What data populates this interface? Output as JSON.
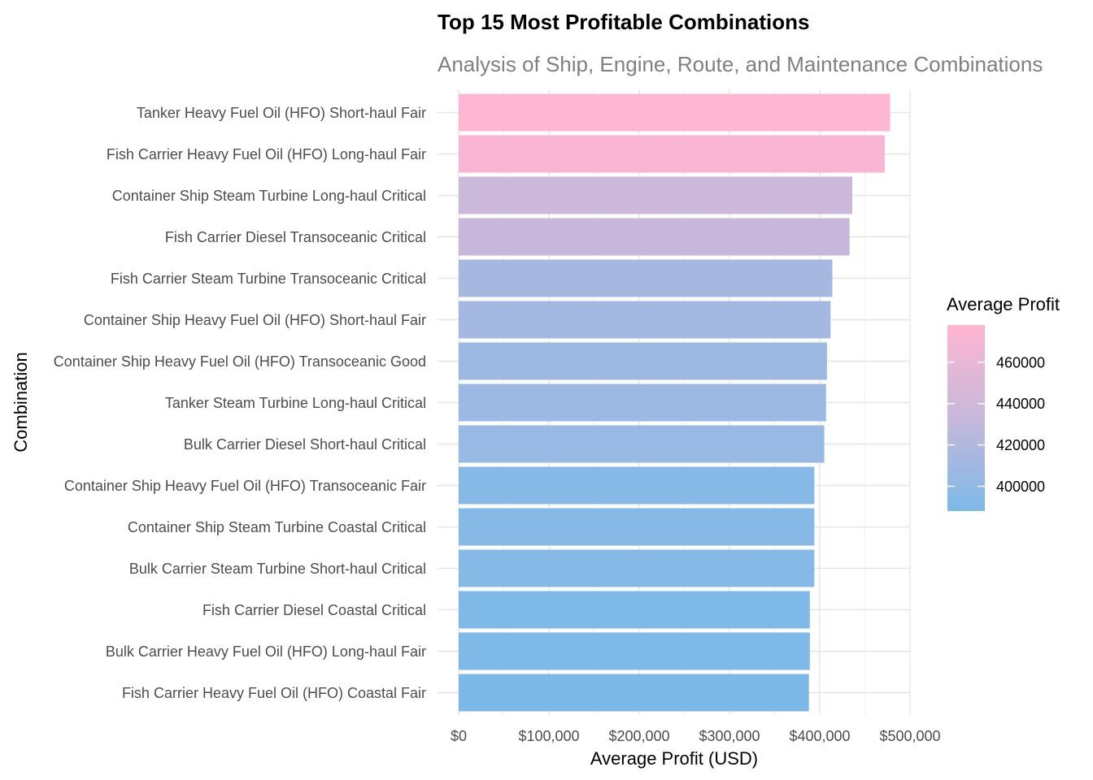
{
  "chart_data": {
    "type": "bar",
    "orientation": "horizontal",
    "title": "Top 15 Most Profitable Combinations",
    "subtitle": "Analysis of Ship, Engine, Route, and Maintenance Combinations",
    "xlabel": "Average Profit (USD)",
    "ylabel": "Combination",
    "xlim": [
      0,
      500000
    ],
    "x_ticks": [
      0,
      100000,
      200000,
      300000,
      400000,
      500000
    ],
    "x_tick_labels": [
      "$0",
      "$100,000",
      "$200,000",
      "$300,000",
      "$400,000",
      "$500,000"
    ],
    "grid": true,
    "legend": {
      "title": "Average Profit",
      "position": "right",
      "type": "colorbar",
      "range": [
        388000,
        478000
      ],
      "ticks": [
        400000,
        420000,
        440000,
        460000
      ],
      "tick_labels": [
        "400000",
        "420000",
        "440000",
        "460000"
      ],
      "colors": {
        "low": "#7cb9e8",
        "mid": "#c7b8db",
        "high": "#ffb6d1"
      }
    },
    "categories": [
      "Tanker Heavy Fuel Oil (HFO) Short-haul Fair",
      "Fish Carrier Heavy Fuel Oil (HFO) Long-haul Fair",
      "Container Ship Steam Turbine Long-haul Critical",
      "Fish Carrier Diesel Transoceanic Critical",
      "Fish Carrier Steam Turbine Transoceanic Critical",
      "Container Ship Heavy Fuel Oil (HFO) Short-haul Fair",
      "Container Ship Heavy Fuel Oil (HFO) Transoceanic Good",
      "Tanker Steam Turbine Long-haul Critical",
      "Bulk Carrier Diesel Short-haul Critical",
      "Container Ship Heavy Fuel Oil (HFO) Transoceanic Fair",
      "Container Ship Steam Turbine Coastal Critical",
      "Bulk Carrier Steam Turbine Short-haul Critical",
      "Fish Carrier Diesel Coastal Critical",
      "Bulk Carrier Heavy Fuel Oil (HFO) Long-haul Fair",
      "Fish Carrier Heavy Fuel Oil (HFO) Coastal Fair"
    ],
    "values": [
      478000,
      472000,
      436000,
      433000,
      414000,
      412000,
      408000,
      407000,
      405000,
      394000,
      394000,
      394000,
      389000,
      389000,
      388000
    ]
  }
}
